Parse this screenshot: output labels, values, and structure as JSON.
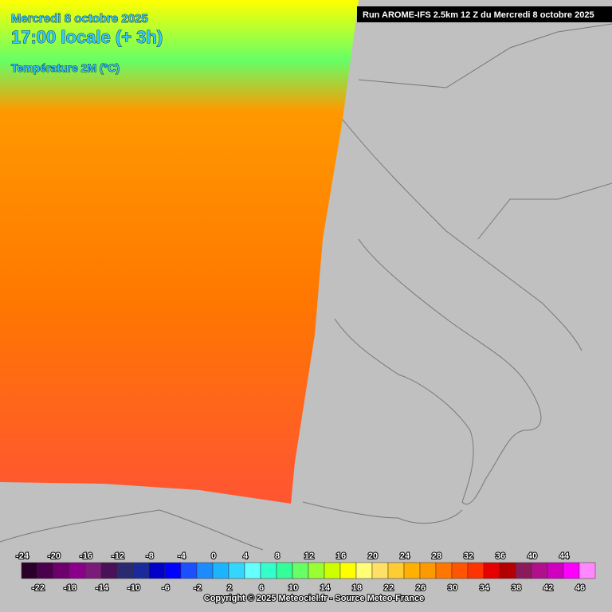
{
  "header": {
    "date": "Mercredi 8 octobre 2025",
    "time": "17:00 locale (+ 3h)",
    "parameter": "Température 2M (°C)",
    "run": "Run AROME-IFS 2.5km 12 Z du Mercredi 8 octobre 2025"
  },
  "legend": {
    "steps": [
      {
        "value": -24,
        "color": "#2a002a"
      },
      {
        "value": -22,
        "color": "#4b004b"
      },
      {
        "value": -20,
        "color": "#6e006e"
      },
      {
        "value": -18,
        "color": "#8b008b"
      },
      {
        "value": -16,
        "color": "#7a1a7a"
      },
      {
        "value": -14,
        "color": "#4a1058"
      },
      {
        "value": -12,
        "color": "#2a2a70"
      },
      {
        "value": -10,
        "color": "#1a2a9a"
      },
      {
        "value": -8,
        "color": "#0000c8"
      },
      {
        "value": -6,
        "color": "#0000ff"
      },
      {
        "value": -4,
        "color": "#1a50ff"
      },
      {
        "value": -2,
        "color": "#1a8cff"
      },
      {
        "value": 0,
        "color": "#1ab4ff"
      },
      {
        "value": 2,
        "color": "#33d6ff"
      },
      {
        "value": 4,
        "color": "#66ffff"
      },
      {
        "value": 6,
        "color": "#33ffcc"
      },
      {
        "value": 8,
        "color": "#33ff99"
      },
      {
        "value": 10,
        "color": "#66ff66"
      },
      {
        "value": 12,
        "color": "#99ff33"
      },
      {
        "value": 14,
        "color": "#ccff00"
      },
      {
        "value": 16,
        "color": "#ffff00"
      },
      {
        "value": 18,
        "color": "#ffff77"
      },
      {
        "value": 20,
        "color": "#ffe066"
      },
      {
        "value": 22,
        "color": "#ffcc33"
      },
      {
        "value": 24,
        "color": "#ffb000"
      },
      {
        "value": 26,
        "color": "#ff9900"
      },
      {
        "value": 28,
        "color": "#ff7700"
      },
      {
        "value": 30,
        "color": "#ff5500"
      },
      {
        "value": 32,
        "color": "#ff3300"
      },
      {
        "value": 34,
        "color": "#e60000"
      },
      {
        "value": 36,
        "color": "#b40000"
      },
      {
        "value": 38,
        "color": "#8b1a5b"
      },
      {
        "value": 40,
        "color": "#b0108b"
      },
      {
        "value": 42,
        "color": "#d000c0"
      },
      {
        "value": 44,
        "color": "#ff00ff"
      },
      {
        "value": 46,
        "color": "#ff88ff"
      }
    ]
  },
  "footer": {
    "copyright": "Copyright © 2025 Meteociel.fr - Source Meteo-France"
  }
}
